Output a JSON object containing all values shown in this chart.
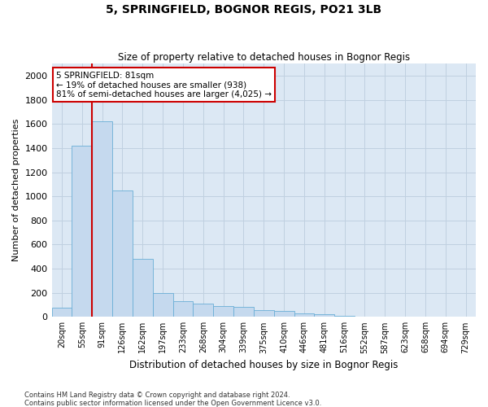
{
  "title": "5, SPRINGFIELD, BOGNOR REGIS, PO21 3LB",
  "subtitle": "Size of property relative to detached houses in Bognor Regis",
  "xlabel": "Distribution of detached houses by size in Bognor Regis",
  "ylabel": "Number of detached properties",
  "bar_color": "#c5d9ee",
  "bar_edge_color": "#6aaed6",
  "grid_color": "#c0d0e0",
  "background_color": "#dce8f4",
  "annotation_box_color": "#ffffff",
  "annotation_border_color": "#cc0000",
  "red_line_color": "#cc0000",
  "bin_labels": [
    "20sqm",
    "55sqm",
    "91sqm",
    "126sqm",
    "162sqm",
    "197sqm",
    "233sqm",
    "268sqm",
    "304sqm",
    "339sqm",
    "375sqm",
    "410sqm",
    "446sqm",
    "481sqm",
    "516sqm",
    "552sqm",
    "587sqm",
    "623sqm",
    "658sqm",
    "694sqm",
    "729sqm"
  ],
  "bar_values": [
    75,
    1420,
    1620,
    1050,
    480,
    200,
    130,
    110,
    90,
    80,
    55,
    50,
    30,
    20,
    10,
    5,
    0,
    0,
    0,
    0,
    0
  ],
  "ylim": [
    0,
    2100
  ],
  "yticks": [
    0,
    200,
    400,
    600,
    800,
    1000,
    1200,
    1400,
    1600,
    1800,
    2000
  ],
  "red_line_x": 1.5,
  "annotation_text": "5 SPRINGFIELD: 81sqm\n← 19% of detached houses are smaller (938)\n81% of semi-detached houses are larger (4,025) →",
  "footnote1": "Contains HM Land Registry data © Crown copyright and database right 2024.",
  "footnote2": "Contains public sector information licensed under the Open Government Licence v3.0."
}
